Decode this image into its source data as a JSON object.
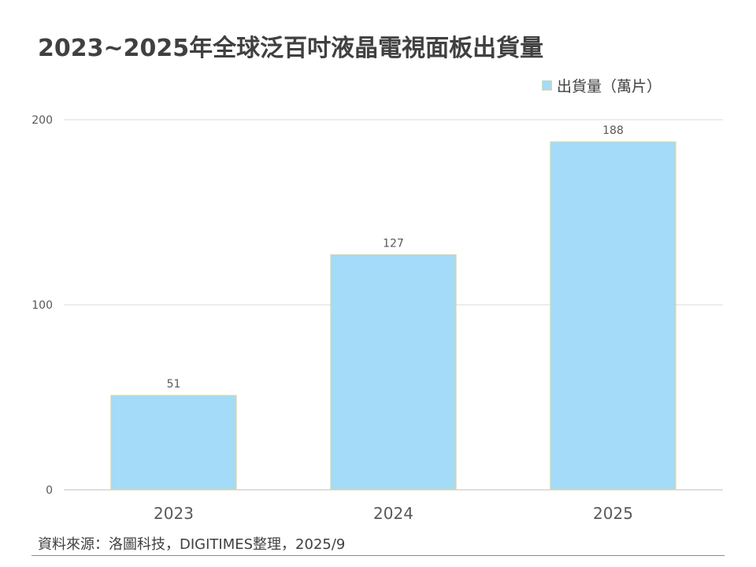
{
  "chart_data": {
    "type": "bar",
    "title": "2023~2025年全球泛百吋液晶電視面板出貨量",
    "categories": [
      "2023",
      "2024",
      "2025"
    ],
    "series": [
      {
        "name": "出貨量（萬片）",
        "values": [
          51,
          127,
          188
        ]
      }
    ],
    "data_labels": [
      "51",
      "127",
      "188"
    ],
    "y_ticks": [
      0,
      100,
      200
    ],
    "ylim": [
      0,
      200
    ],
    "grid": true,
    "legend_position": "top-right",
    "colors": {
      "bar_fill": "#a3dbf8",
      "bar_border": "#d9d4a3",
      "grid": "#d9d9d9",
      "axis_text": "#595959",
      "text": "#404040"
    }
  },
  "source_note": "資料來源：洛圖科技，DIGITIMES整理，2025/9"
}
